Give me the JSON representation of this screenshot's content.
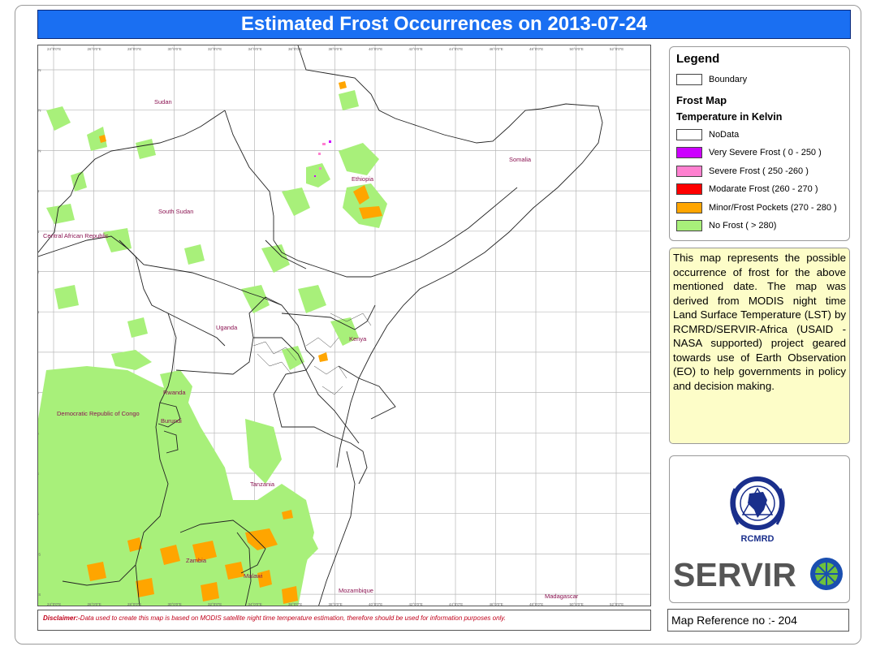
{
  "title": "Estimated Frost Occurrences on 2013-07-24",
  "map": {
    "countries": [
      "Sudan",
      "Somalia",
      "Ethiopia",
      "South Sudan",
      "Central African Republic",
      "Uganda",
      "Kenya",
      "Rwanda",
      "Burundi",
      "Democratic Republic of Congo",
      "Tanzania",
      "Zambia",
      "Malawi",
      "Mozambique",
      "Madagascar"
    ],
    "lon_ticks": [
      "24°0'0\"E",
      "26°0'0\"E",
      "28°0'0\"E",
      "30°0'0\"E",
      "32°0'0\"E",
      "34°0'0\"E",
      "36°0'0\"E",
      "38°0'0\"E",
      "40°0'0\"E",
      "42°0'0\"E",
      "44°0'0\"E",
      "46°0'0\"E",
      "48°0'0\"E",
      "50°0'0\"E",
      "52°0'0\"E"
    ],
    "lat_ticks": [
      "14°0'0\"N",
      "12°0'0\"N",
      "10°0'0\"N",
      "8°0'0\"N",
      "6°0'0\"N",
      "4°0'0\"N",
      "2°0'0\"N",
      "0°0'0\"",
      "2°0'0\"S",
      "4°0'0\"S",
      "6°0'0\"S",
      "8°0'0\"S",
      "10°0'0\"S",
      "12°0'0\"S"
    ]
  },
  "legend": {
    "heading": "Legend",
    "boundary_label": "Boundary",
    "frost_map_heading": "Frost Map",
    "temperature_heading": "Temperature in Kelvin",
    "classes": [
      {
        "label": "NoData",
        "color": "#ffffff"
      },
      {
        "label": "Very Severe Frost ( 0 - 250 )",
        "color": "#cc00ff"
      },
      {
        "label": "Severe Frost ( 250 -260 )",
        "color": "#ff80d0"
      },
      {
        "label": "Modarate Frost (260 - 270 )",
        "color": "#ff0000"
      },
      {
        "label": "Minor/Frost Pockets (270 - 280 )",
        "color": "#ffa500"
      },
      {
        "label": "No Frost ( > 280)",
        "color": "#a8f07a"
      }
    ]
  },
  "description": "This map represents the possible occurrence of frost for the above mentioned date. The map was derived from MODIS night time Land Surface Temperature (LST) by RCMRD/SERVIR-Africa (USAID - NASA supported) project geared towards use of Earth Observation (EO) to help governments in policy and decision making.",
  "logos": {
    "rcmrd_text": "RCMRD",
    "servir_text": "SERVIR"
  },
  "disclaimer": {
    "prefix": "Disclaimer:-",
    "text": "Data used to create this map is based on MODIS satellite night time temperature estimation, therefore should be used for information purposes only."
  },
  "map_reference": "Map Reference no :- 204"
}
